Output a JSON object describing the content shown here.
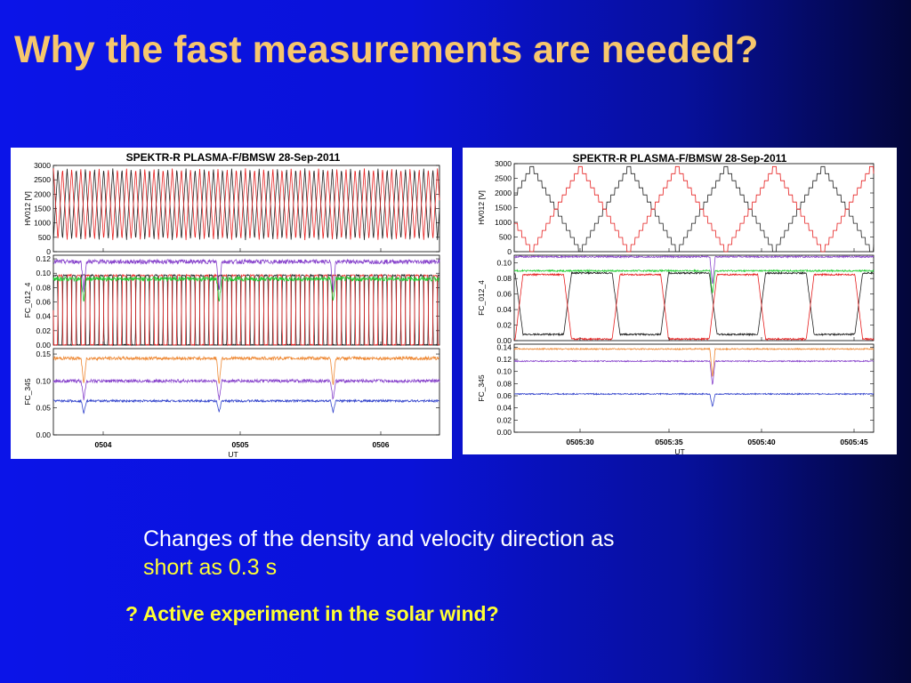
{
  "slide": {
    "title": "Why the fast measurements are needed?",
    "caption_text": "Changes of the density and velocity direction as",
    "caption_highlight": "short as 0.3 s",
    "question": "? Active experiment in the solar wind?"
  },
  "colors": {
    "title": "#f7c76d",
    "highlight": "#ffff33",
    "black_trace": "#222222",
    "red_trace": "#e62020",
    "green_trace": "#22cc33",
    "purple_trace": "#8844cc",
    "orange_trace": "#ee8833",
    "blue_trace": "#3344cc"
  },
  "chart_data": [
    {
      "type": "line",
      "title": "SPEKTR-R  PLASMA-F/BMSW  28-Sep-2011",
      "xlabel": "UT",
      "x_ticks": [
        "0504",
        "0505",
        "0506"
      ],
      "x_range_minutes": [
        3.88,
        6.42
      ],
      "panels": [
        {
          "ylabel": "HV012 [V]",
          "yticks": [
            "3000",
            "2500",
            "2000",
            "1500",
            "1000",
            "500",
            "0"
          ],
          "ylim": [
            0,
            3000
          ],
          "kind": "fast_sweep",
          "series": [
            {
              "color": "black",
              "min": 400,
              "max": 2900,
              "period_s": 3.6,
              "phase": 0.0
            },
            {
              "color": "red",
              "min": 400,
              "max": 2900,
              "period_s": 3.6,
              "phase": 0.5
            }
          ]
        },
        {
          "ylabel": "FC_012_4",
          "yticks": [
            "0.12",
            "0.10",
            "0.08",
            "0.06",
            "0.04",
            "0.02",
            "0.00"
          ],
          "ylim": [
            0,
            0.125
          ],
          "kind": "square_switch",
          "series": [
            {
              "color": "black",
              "low": 0.0,
              "high": 0.097,
              "period_s": 3.6,
              "phase": 0.0
            },
            {
              "color": "red",
              "low": 0.0,
              "high": 0.097,
              "period_s": 3.6,
              "phase": 0.5
            },
            {
              "color": "green",
              "level": 0.092,
              "noise": 0.003
            },
            {
              "color": "purple",
              "level": 0.116,
              "noise": 0.003
            }
          ],
          "dips_min": [
            4.08,
            4.97,
            5.72
          ]
        },
        {
          "ylabel": "FC_345",
          "yticks": [
            "0.15",
            "0.10",
            "0.05",
            "0.00"
          ],
          "ylim": [
            0,
            0.16
          ],
          "kind": "levels",
          "series": [
            {
              "color": "orange",
              "level": 0.142,
              "noise": 0.003
            },
            {
              "color": "purple",
              "level": 0.1,
              "noise": 0.003
            },
            {
              "color": "blue",
              "level": 0.063,
              "noise": 0.002
            }
          ],
          "dips_min": [
            4.08,
            4.97,
            5.72
          ]
        }
      ]
    },
    {
      "type": "line",
      "title": "SPEKTR-R  PLASMA-F/BMSW  28-Sep-2011",
      "xlabel": "UT",
      "x_ticks": [
        "0505:30",
        "0505:35",
        "0505:40",
        "0505:45"
      ],
      "x_range_s": [
        26.5,
        46.8
      ],
      "panels": [
        {
          "ylabel": "HV012 [V]",
          "yticks": [
            "3000",
            "2500",
            "2000",
            "1500",
            "1000",
            "500",
            "0"
          ],
          "ylim": [
            0,
            3000
          ],
          "kind": "stair_triangle",
          "series": [
            {
              "color": "black",
              "min": 0,
              "max": 2900,
              "period_s": 3.6,
              "phase": 0.32
            },
            {
              "color": "red",
              "min": 0,
              "max": 2900,
              "period_s": 3.6,
              "phase": 0.82
            }
          ]
        },
        {
          "ylabel": "FC_012_4",
          "yticks": [
            "0.10",
            "0.08",
            "0.06",
            "0.04",
            "0.02",
            "0.00"
          ],
          "ylim": [
            0,
            0.11
          ],
          "kind": "square_switch",
          "series": [
            {
              "color": "black",
              "low": 0.008,
              "high": 0.087,
              "period_s": 3.6,
              "phase": 0.45
            },
            {
              "color": "red",
              "low": 0.002,
              "high": 0.085,
              "period_s": 3.6,
              "phase": 0.95
            },
            {
              "color": "green",
              "level": 0.09,
              "noise": 0.001
            },
            {
              "color": "purple",
              "level": 0.108,
              "noise": 0.001
            }
          ],
          "dips_s": [
            37.7
          ]
        },
        {
          "ylabel": "FC_345",
          "yticks": [
            "0.14",
            "0.12",
            "0.10",
            "0.08",
            "0.06",
            "0.04",
            "0.02",
            "0.00"
          ],
          "ylim": [
            0,
            0.145
          ],
          "kind": "levels",
          "series": [
            {
              "color": "orange",
              "level": 0.137,
              "noise": 0.001
            },
            {
              "color": "purple",
              "level": 0.117,
              "noise": 0.001
            },
            {
              "color": "blue",
              "level": 0.063,
              "noise": 0.001
            }
          ],
          "dips_s": [
            37.7
          ]
        }
      ]
    }
  ]
}
